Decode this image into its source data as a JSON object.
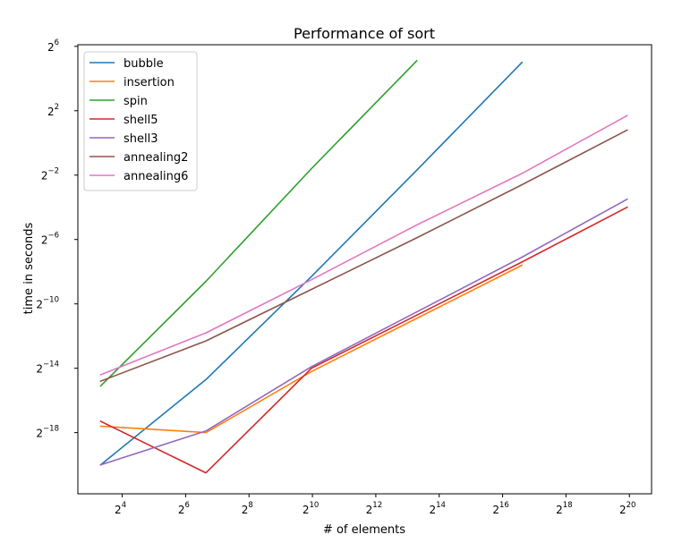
{
  "chart_data": {
    "type": "line",
    "title": "Performance of sort",
    "xlabel": "# of elements",
    "ylabel": "time in seconds",
    "xscale": "log2",
    "yscale": "log2",
    "xlim_log2": [
      2.6,
      20.7
    ],
    "ylim_log2": [
      -21.8,
      6.1
    ],
    "xticks_log2": [
      4,
      6,
      8,
      10,
      12,
      14,
      16,
      18,
      20
    ],
    "yticks_log2": [
      -18,
      -14,
      -10,
      -6,
      -2,
      2,
      6
    ],
    "tick_base": "2",
    "legend_position": "top-left",
    "grid": false,
    "series": [
      {
        "name": "bubble",
        "color": "#1f77b4",
        "x_log2": [
          3.32,
          6.64,
          9.97,
          13.29,
          16.61
        ],
        "y_log2": [
          -20.0,
          -14.7,
          -8.3,
          -1.7,
          5.0
        ]
      },
      {
        "name": "insertion",
        "color": "#ff7f0e",
        "x_log2": [
          3.32,
          6.64,
          9.97,
          13.29,
          16.61
        ],
        "y_log2": [
          -17.6,
          -18.0,
          -14.2,
          -10.9,
          -7.6
        ]
      },
      {
        "name": "spin",
        "color": "#2ca02c",
        "x_log2": [
          3.32,
          6.64,
          9.97,
          13.29
        ],
        "y_log2": [
          -15.1,
          -8.6,
          -1.6,
          5.1
        ]
      },
      {
        "name": "shell5",
        "color": "#d62728",
        "x_log2": [
          3.32,
          6.64,
          9.97,
          13.29,
          16.61,
          19.93
        ],
        "y_log2": [
          -17.3,
          -20.5,
          -14.0,
          -10.7,
          -7.4,
          -4.0
        ]
      },
      {
        "name": "shell3",
        "color": "#9467bd",
        "x_log2": [
          3.32,
          6.64,
          9.97,
          13.29,
          16.61,
          19.93
        ],
        "y_log2": [
          -20.0,
          -17.9,
          -13.9,
          -10.5,
          -7.1,
          -3.5
        ]
      },
      {
        "name": "annealing2",
        "color": "#8c564b",
        "x_log2": [
          3.32,
          6.64,
          9.97,
          13.29,
          16.61,
          19.93
        ],
        "y_log2": [
          -14.8,
          -12.3,
          -9.1,
          -5.9,
          -2.6,
          0.8
        ]
      },
      {
        "name": "annealing6",
        "color": "#e377c2",
        "x_log2": [
          3.32,
          6.64,
          9.97,
          13.29,
          16.61,
          19.93
        ],
        "y_log2": [
          -14.4,
          -11.8,
          -8.5,
          -5.1,
          -1.9,
          1.7
        ]
      }
    ]
  }
}
